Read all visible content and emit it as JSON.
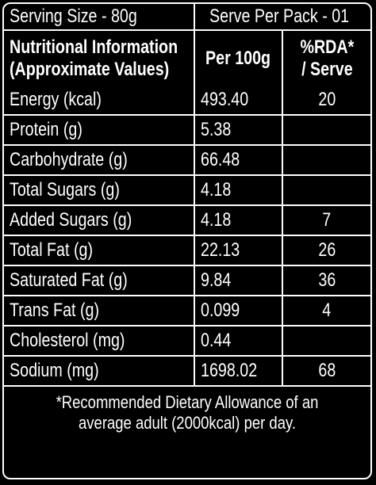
{
  "header": {
    "serving_size": "Serving Size - 80g",
    "serve_per_pack": "Serve Per Pack - 01"
  },
  "columns": {
    "nutrient_line1": "Nutritional Information",
    "nutrient_line2": "(Approximate Values)",
    "per100g": "Per 100g",
    "rda_line1": "%RDA*",
    "rda_line2": "/ Serve"
  },
  "rows": [
    {
      "name": "Energy (kcal)",
      "per100g": "493.40",
      "rda": "20"
    },
    {
      "name": "Protein (g)",
      "per100g": "5.38",
      "rda": ""
    },
    {
      "name": "Carbohydrate (g)",
      "per100g": "66.48",
      "rda": ""
    },
    {
      "name": "Total Sugars (g)",
      "per100g": "4.18",
      "rda": ""
    },
    {
      "name": "Added Sugars (g)",
      "per100g": "4.18",
      "rda": "7"
    },
    {
      "name": "Total Fat (g)",
      "per100g": "22.13",
      "rda": "26"
    },
    {
      "name": "Saturated Fat (g)",
      "per100g": "9.84",
      "rda": "36"
    },
    {
      "name": "Trans Fat (g)",
      "per100g": "0.099",
      "rda": "4"
    },
    {
      "name": "Cholesterol (mg)",
      "per100g": "0.44",
      "rda": ""
    },
    {
      "name": "Sodium (mg)",
      "per100g": "1698.02",
      "rda": "68"
    }
  ],
  "footnote": "*Recommended Dietary Allowance of an average adult (2000kcal) per day.",
  "colors": {
    "background": "#000000",
    "text": "#ffffff",
    "border": "#ffffff"
  }
}
